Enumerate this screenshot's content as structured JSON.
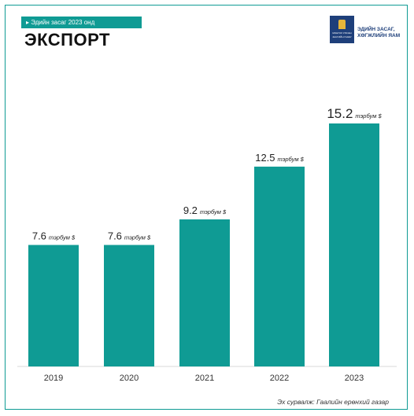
{
  "header": {
    "tag": "Эдийн засаг 2023 онд",
    "title": "ЭКСПОРТ"
  },
  "logo": {
    "icon": "ministry-emblem-icon",
    "line1": "ЭДИЙН ЗАСАГ,",
    "line2": "ХӨГЖЛИЙН ЯАМ",
    "small1": "МОНГОЛ УЛСЫН",
    "small2": "ЗАСГИЙН ГАЗАР"
  },
  "colors": {
    "accent": "#0f9b94",
    "text": "#222222",
    "logo": "#1e3f7a"
  },
  "chart_data": {
    "type": "bar",
    "title": "ЭКСПОРТ",
    "categories": [
      "2019",
      "2020",
      "2021",
      "2022",
      "2023"
    ],
    "values": [
      7.6,
      7.6,
      9.2,
      12.5,
      15.2
    ],
    "value_labels": [
      "7.6",
      "7.6",
      "9.2",
      "12.5",
      "15.2"
    ],
    "unit": "тэрбум $",
    "ylim": [
      0,
      15.2
    ],
    "grid": false,
    "legend": "none"
  },
  "source": "Эх сурвалж: Гаалийн ерөнхий газар"
}
